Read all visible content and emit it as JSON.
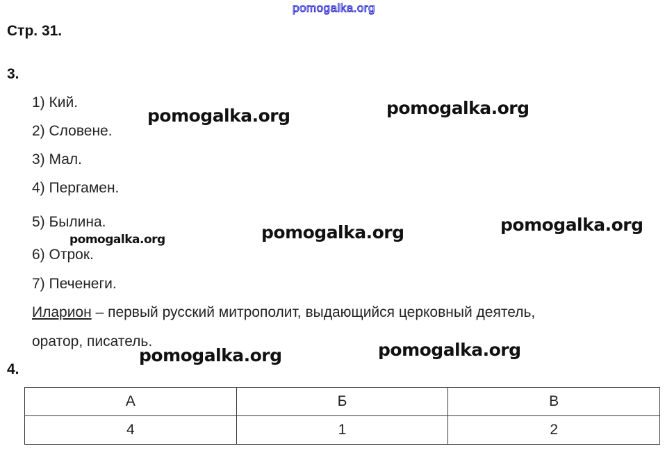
{
  "watermarks": {
    "top": "pomogalka.org",
    "w1": "pomogalka.org",
    "w2": "pomogalka.org",
    "w3": "pomogalka.org",
    "w4": "pomogalka.org",
    "w5": "pomogalka.org",
    "w6": "pomogalka.org",
    "w7": "pomogalka.org"
  },
  "page_title": "Стр. 31.",
  "task3": {
    "number": "3.",
    "items": [
      "1) Кий.",
      "2) Словене.",
      "3) Мал.",
      "4) Пергамен.",
      "5) Былина.",
      "6) Отрок.",
      "7) Печенеги."
    ],
    "term": "Иларион",
    "definition_line1": " – первый русский митрополит, выдающийся церковный деятель,",
    "definition_line2": "оратор, писатель."
  },
  "task4": {
    "number": "4.",
    "headers": [
      "А",
      "Б",
      "В"
    ],
    "values": [
      "4",
      "1",
      "2"
    ]
  },
  "colors": {
    "top_watermark": "#2a2ad0",
    "text": "#222222"
  }
}
